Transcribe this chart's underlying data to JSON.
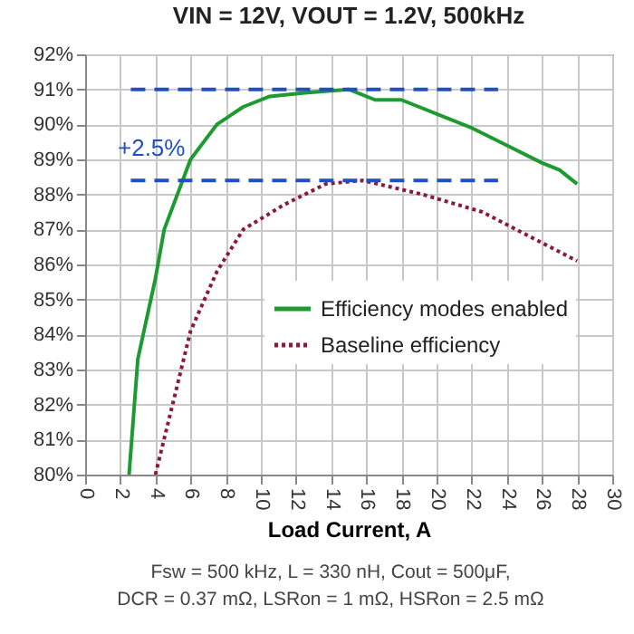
{
  "chart_data": {
    "type": "line",
    "title": "VIN = 12V, VOUT = 1.2V, 500kHz",
    "xlabel": "Load Current, A",
    "annotations": [
      "+2.5%",
      "Fsw = 500 kHz, L = 330 nH, Cout = 500μF,",
      "DCR = 0.37 mΩ, LSRon = 1 mΩ, HSRon = 2.5 mΩ"
    ],
    "series": [
      {
        "name": "Efficiency modes enabled",
        "color": "#1e9a32",
        "line_style": "solid",
        "x": [
          2.5,
          3,
          4,
          4.5,
          6,
          7.5,
          9,
          10.5,
          12.5,
          15,
          16.5,
          18,
          20.5,
          22,
          24,
          26,
          27,
          28
        ],
        "values": [
          80,
          83.3,
          85.6,
          87,
          89,
          90,
          90.5,
          90.8,
          90.9,
          91,
          90.7,
          90.7,
          90.2,
          89.9,
          89.4,
          88.9,
          88.7,
          88.3
        ]
      },
      {
        "name": "Baseline efficiency",
        "color": "#8b1a3a",
        "line_style": "dotted",
        "x": [
          4,
          6,
          7.5,
          9,
          11.3,
          13.7,
          15.8,
          19.2,
          22.6,
          25.3,
          28
        ],
        "values": [
          80,
          84.1,
          85.8,
          87,
          87.7,
          88.3,
          88.4,
          88,
          87.5,
          86.8,
          86.1
        ]
      },
      {
        "color": "#2050c0",
        "line_style": "dashed",
        "x": [
          2.6,
          23.5
        ],
        "values": [
          91,
          91
        ]
      },
      {
        "color": "#2050c0",
        "line_style": "dashed",
        "x": [
          2.6,
          23.5
        ],
        "values": [
          88.4,
          88.4
        ]
      }
    ],
    "xlim": [
      0,
      30
    ],
    "xticks": [
      0,
      2,
      4,
      6,
      8,
      10,
      12,
      14,
      16,
      18,
      20,
      22,
      24,
      26,
      28,
      30
    ],
    "ylim": [
      80,
      92
    ],
    "yticks": [
      {
        "value": 80,
        "label": "80%"
      },
      {
        "value": 81,
        "label": "81%"
      },
      {
        "value": 82,
        "label": "82%"
      },
      {
        "value": 83,
        "label": "83%"
      },
      {
        "value": 84,
        "label": "84%"
      },
      {
        "value": 85,
        "label": "85%"
      },
      {
        "value": 86,
        "label": "86%"
      },
      {
        "value": 87,
        "label": "87%"
      },
      {
        "value": 88,
        "label": "88%"
      },
      {
        "value": 89,
        "label": "89%"
      },
      {
        "value": 90,
        "label": "90%"
      },
      {
        "value": 91,
        "label": "91%"
      },
      {
        "value": 92,
        "label": "92%"
      }
    ],
    "grid": true,
    "legend": "right",
    "marker": "none"
  }
}
